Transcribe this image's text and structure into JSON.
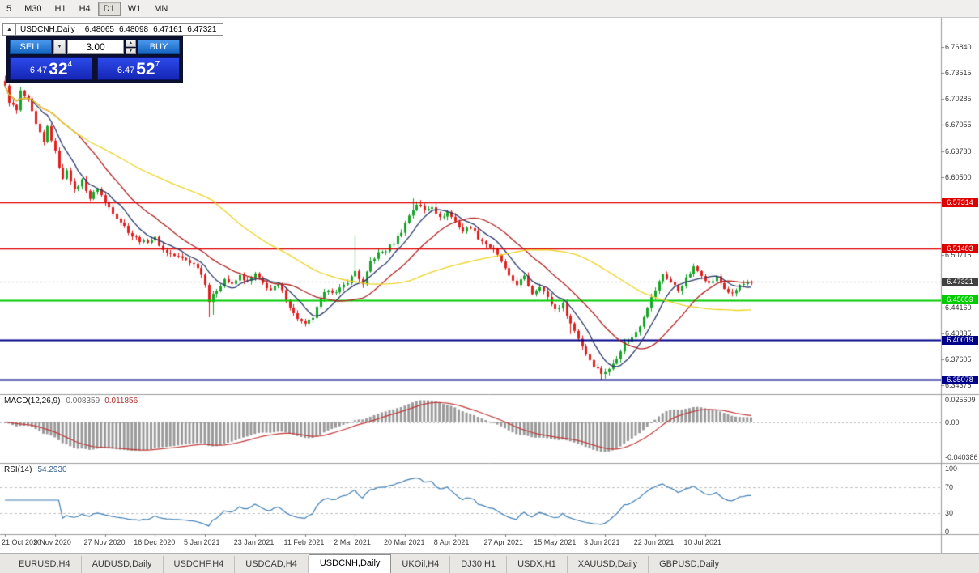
{
  "toolbar": {
    "timeframes": [
      "5",
      "M30",
      "H1",
      "H4",
      "D1",
      "W1",
      "MN"
    ],
    "active_timeframe": "D1"
  },
  "header": {
    "collapse_icon": "▲",
    "symbol": "USDCNH,Daily",
    "open": "6.48065",
    "high": "6.48098",
    "low": "6.47161",
    "close": "6.47321"
  },
  "trade_panel": {
    "sell_label": "SELL",
    "buy_label": "BUY",
    "volume": "3.00",
    "dropdown_icon": "▼",
    "spin_up_icon": "▲",
    "spin_down_icon": "▼",
    "sell_price": {
      "prefix": "6.47",
      "big": "32",
      "sup": "4"
    },
    "buy_price": {
      "prefix": "6.47",
      "big": "52",
      "sup": "7"
    }
  },
  "y_axis": {
    "ticks": [
      "6.76840",
      "6.73515",
      "6.70285",
      "6.67055",
      "6.63730",
      "6.60500",
      "6.50715",
      "6.44160",
      "6.40835",
      "6.37605",
      "6.34375"
    ]
  },
  "x_axis": {
    "labels": [
      "21 Oct 2020",
      "9 Nov 2020",
      "27 Nov 2020",
      "16 Dec 2020",
      "5 Jan 2021",
      "23 Jan 2021",
      "11 Feb 2021",
      "2 Mar 2021",
      "20 Mar 2021",
      "8 Apr 2021",
      "27 Apr 2021",
      "15 May 2021",
      "3 Jun 2021",
      "22 Jun 2021",
      "10 Jul 2021"
    ]
  },
  "indicators": {
    "macd": {
      "label": "MACD(12,26,9)",
      "value_main": "0.008359",
      "value_signal": "0.011856",
      "axis": [
        "0.025609",
        "0.00",
        "-0.040386"
      ]
    },
    "rsi": {
      "label": "RSI(14)",
      "value": "54.2930",
      "axis": [
        "100",
        "70",
        "30",
        "0"
      ]
    }
  },
  "tabs": [
    "EURUSD,H4",
    "AUDUSD,Daily",
    "USDCHF,H4",
    "USDCAD,H4",
    "USDCNH,Daily",
    "UKOil,H4",
    "DJ30,H1",
    "USDX,H1",
    "XAUUSD,Daily",
    "GBPUSD,Daily"
  ],
  "active_tab": "USDCNH,Daily",
  "colors": {
    "up_candle": "#18a428",
    "down_candle": "#e02020",
    "ma_fast": "#2b3a6b",
    "ma_mid": "#b22222",
    "ma_slow": "#ecd424",
    "macd_hist": "#9a9a9a",
    "macd_signal": "#c03a3a",
    "rsi_line": "#3f7fb5",
    "level_red": "#dd0000",
    "level_green": "#00cc00",
    "level_blue": "#000089",
    "current_badge": "#404040"
  },
  "chart_data": {
    "type": "candlestick",
    "symbol": "USDCNH",
    "timeframe": "Daily",
    "bars": 195,
    "price_range": [
      6.33251,
      6.79042
    ],
    "current_price": 6.47321,
    "open": 6.48065,
    "high": 6.48098,
    "low": 6.47161,
    "levels": [
      {
        "price": 6.57314,
        "color_key": "level_red",
        "label": "6.57314"
      },
      {
        "price": 6.51483,
        "color_key": "level_red",
        "label": "6.51483"
      },
      {
        "price": 6.45059,
        "color_key": "level_green",
        "label": "6.45059"
      },
      {
        "price": 6.40019,
        "color_key": "level_blue",
        "label": "6.40019"
      },
      {
        "price": 6.35078,
        "color_key": "level_blue",
        "label": "6.35078"
      }
    ],
    "anchors": [
      [
        0,
        6.718
      ],
      [
        1,
        6.7
      ],
      [
        3,
        6.688
      ],
      [
        4,
        6.712
      ],
      [
        6,
        6.701
      ],
      [
        8,
        6.67
      ],
      [
        10,
        6.648
      ],
      [
        11,
        6.668
      ],
      [
        13,
        6.636
      ],
      [
        15,
        6.601
      ],
      [
        16,
        6.615
      ],
      [
        18,
        6.588
      ],
      [
        20,
        6.601
      ],
      [
        22,
        6.578
      ],
      [
        24,
        6.591
      ],
      [
        26,
        6.573
      ],
      [
        28,
        6.561
      ],
      [
        30,
        6.549
      ],
      [
        33,
        6.531
      ],
      [
        36,
        6.523
      ],
      [
        39,
        6.528
      ],
      [
        41,
        6.513
      ],
      [
        44,
        6.506
      ],
      [
        47,
        6.501
      ],
      [
        50,
        6.493
      ],
      [
        52,
        6.472
      ],
      [
        53,
        6.449
      ],
      [
        55,
        6.463
      ],
      [
        57,
        6.477
      ],
      [
        59,
        6.469
      ],
      [
        61,
        6.481
      ],
      [
        63,
        6.473
      ],
      [
        65,
        6.483
      ],
      [
        67,
        6.471
      ],
      [
        69,
        6.463
      ],
      [
        71,
        6.469
      ],
      [
        73,
        6.453
      ],
      [
        75,
        6.433
      ],
      [
        77,
        6.423
      ],
      [
        78,
        6.419
      ],
      [
        80,
        6.429
      ],
      [
        82,
        6.451
      ],
      [
        84,
        6.465
      ],
      [
        86,
        6.459
      ],
      [
        88,
        6.469
      ],
      [
        90,
        6.479
      ],
      [
        91,
        6.487
      ],
      [
        93,
        6.469
      ],
      [
        95,
        6.499
      ],
      [
        97,
        6.509
      ],
      [
        99,
        6.513
      ],
      [
        101,
        6.523
      ],
      [
        103,
        6.537
      ],
      [
        105,
        6.557
      ],
      [
        107,
        6.571
      ],
      [
        109,
        6.563
      ],
      [
        111,
        6.569
      ],
      [
        113,
        6.553
      ],
      [
        115,
        6.561
      ],
      [
        117,
        6.549
      ],
      [
        119,
        6.537
      ],
      [
        121,
        6.543
      ],
      [
        123,
        6.529
      ],
      [
        125,
        6.521
      ],
      [
        127,
        6.513
      ],
      [
        129,
        6.499
      ],
      [
        131,
        6.479
      ],
      [
        133,
        6.471
      ],
      [
        135,
        6.479
      ],
      [
        137,
        6.459
      ],
      [
        139,
        6.469
      ],
      [
        141,
        6.453
      ],
      [
        143,
        6.439
      ],
      [
        145,
        6.445
      ],
      [
        147,
        6.421
      ],
      [
        149,
        6.403
      ],
      [
        151,
        6.383
      ],
      [
        153,
        6.369
      ],
      [
        155,
        6.359
      ],
      [
        157,
        6.363
      ],
      [
        159,
        6.379
      ],
      [
        161,
        6.397
      ],
      [
        163,
        6.403
      ],
      [
        165,
        6.419
      ],
      [
        167,
        6.443
      ],
      [
        169,
        6.463
      ],
      [
        171,
        6.483
      ],
      [
        173,
        6.473
      ],
      [
        175,
        6.463
      ],
      [
        177,
        6.477
      ],
      [
        179,
        6.491
      ],
      [
        181,
        6.483
      ],
      [
        183,
        6.471
      ],
      [
        185,
        6.479
      ],
      [
        187,
        6.465
      ],
      [
        189,
        6.457
      ],
      [
        191,
        6.469
      ],
      [
        194,
        6.4732
      ]
    ],
    "wick_events": [
      {
        "bar": 0,
        "high": 6.732
      },
      {
        "bar": 53,
        "low": 6.429
      },
      {
        "bar": 54,
        "low": 6.432
      },
      {
        "bar": 91,
        "high": 6.532
      },
      {
        "bar": 106,
        "high": 6.578
      },
      {
        "bar": 108,
        "high": 6.576
      },
      {
        "bar": 147,
        "low": 6.408
      },
      {
        "bar": 155,
        "low": 6.35
      },
      {
        "bar": 156,
        "low": 6.352
      }
    ],
    "moving_averages": [
      {
        "period": 8,
        "color_key": "ma_fast"
      },
      {
        "period": 20,
        "color_key": "ma_mid"
      },
      {
        "period": 55,
        "color_key": "ma_slow"
      }
    ],
    "macd_params": {
      "fast": 12,
      "slow": 26,
      "signal": 9,
      "range": [
        -0.040386,
        0.025609
      ]
    },
    "rsi_params": {
      "period": 14,
      "levels": [
        70,
        30
      ],
      "range": [
        0,
        100
      ],
      "current": 54.293
    }
  }
}
